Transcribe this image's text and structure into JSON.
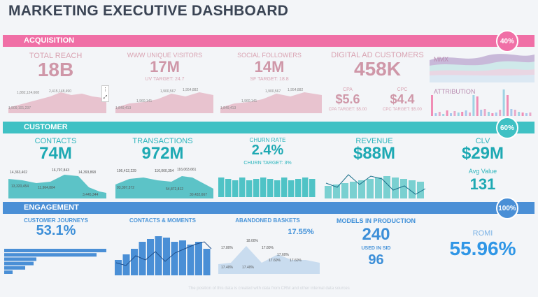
{
  "title": "MARKETING EXECUTIVE DASHBOARD",
  "colors": {
    "acquisition": "#f06fa6",
    "customer": "#3fc1c4",
    "engagement": "#4a8fd6"
  },
  "acquisition": {
    "label": "ACQUISITION",
    "progress": 0.4,
    "progress_label": "40%",
    "total_reach": {
      "label": "TOTAL REACH",
      "value": "18B",
      "annotations": [
        "1,882,124,608",
        "2,415,148,490",
        "1,509,101,237"
      ]
    },
    "www_visitors": {
      "label": "WWW UNIQUE VISITORS",
      "value": "17M",
      "target": "UV TARGET: 24.7",
      "annotations": [
        "1,960,141",
        "1,900,567",
        "1,954,882",
        "1,849,413"
      ]
    },
    "social": {
      "label": "SOCIAL FOLLOWERS",
      "value": "14M",
      "target": "SF TARGET: 18.8",
      "annotations": [
        "1,960,141",
        "1,900,567",
        "1,954,882",
        "1,849,413"
      ]
    },
    "digital_ad": {
      "label": "DIGITAL AD CUSTOMERS",
      "value": "458K"
    },
    "cpa": {
      "label": "CPA",
      "value": "$5.6",
      "target": "CPA TARGET: $5.00"
    },
    "cpc": {
      "label": "CPC",
      "value": "$4.4",
      "target": "CPC TARGET: $5.00"
    },
    "mmx_label": "MMX",
    "attribution_label": "ATTRIBUTION"
  },
  "customer": {
    "label": "CUSTOMER",
    "progress": 0.6,
    "progress_label": "60%",
    "contacts": {
      "label": "CONTACTS",
      "value": "74M",
      "annotations": [
        "14,363,402",
        "16,797,843",
        "14,393,868",
        "13,320,454",
        "11,964,884",
        "3,445,344"
      ]
    },
    "transactions": {
      "label": "TRANSACTIONS",
      "value": "972M",
      "annotations": [
        "106,412,229",
        "110,060,354",
        "116,063,661",
        "93,397,372",
        "54,872,812",
        "30,432,667"
      ]
    },
    "churn": {
      "label": "CHURN RATE",
      "value": "2.4%",
      "target": "CHURN TARGET: 3%"
    },
    "revenue": {
      "label": "REVENUE",
      "value": "$88M"
    },
    "clv": {
      "label": "CLV",
      "value": "$29M",
      "avg_label": "Avg Value",
      "avg_value": "131"
    }
  },
  "engagement": {
    "label": "ENGAGEMENT",
    "progress": 1.0,
    "progress_label": "100%",
    "journeys": {
      "label": "CUSTOMER JOURNEYS",
      "value": "53.1%"
    },
    "contacts_moments": {
      "label": "CONTACTS & MOMENTS"
    },
    "abandoned": {
      "label": "ABANDONED BASKETS",
      "value": "17.55%",
      "annotations": [
        "17.80%",
        "18.00%",
        "17.40%",
        "17.40%",
        "17.80%",
        "17.60%",
        "17.60%",
        "17.60%"
      ]
    },
    "models": {
      "label": "MODELS IN PRODUCTION",
      "value": "240",
      "used_label": "USED IN SID",
      "used_value": "96"
    },
    "romi": {
      "label": "ROMI",
      "value": "55.96%"
    }
  },
  "footer": "The position of this data is created with data from CRM and other internal data sources"
}
